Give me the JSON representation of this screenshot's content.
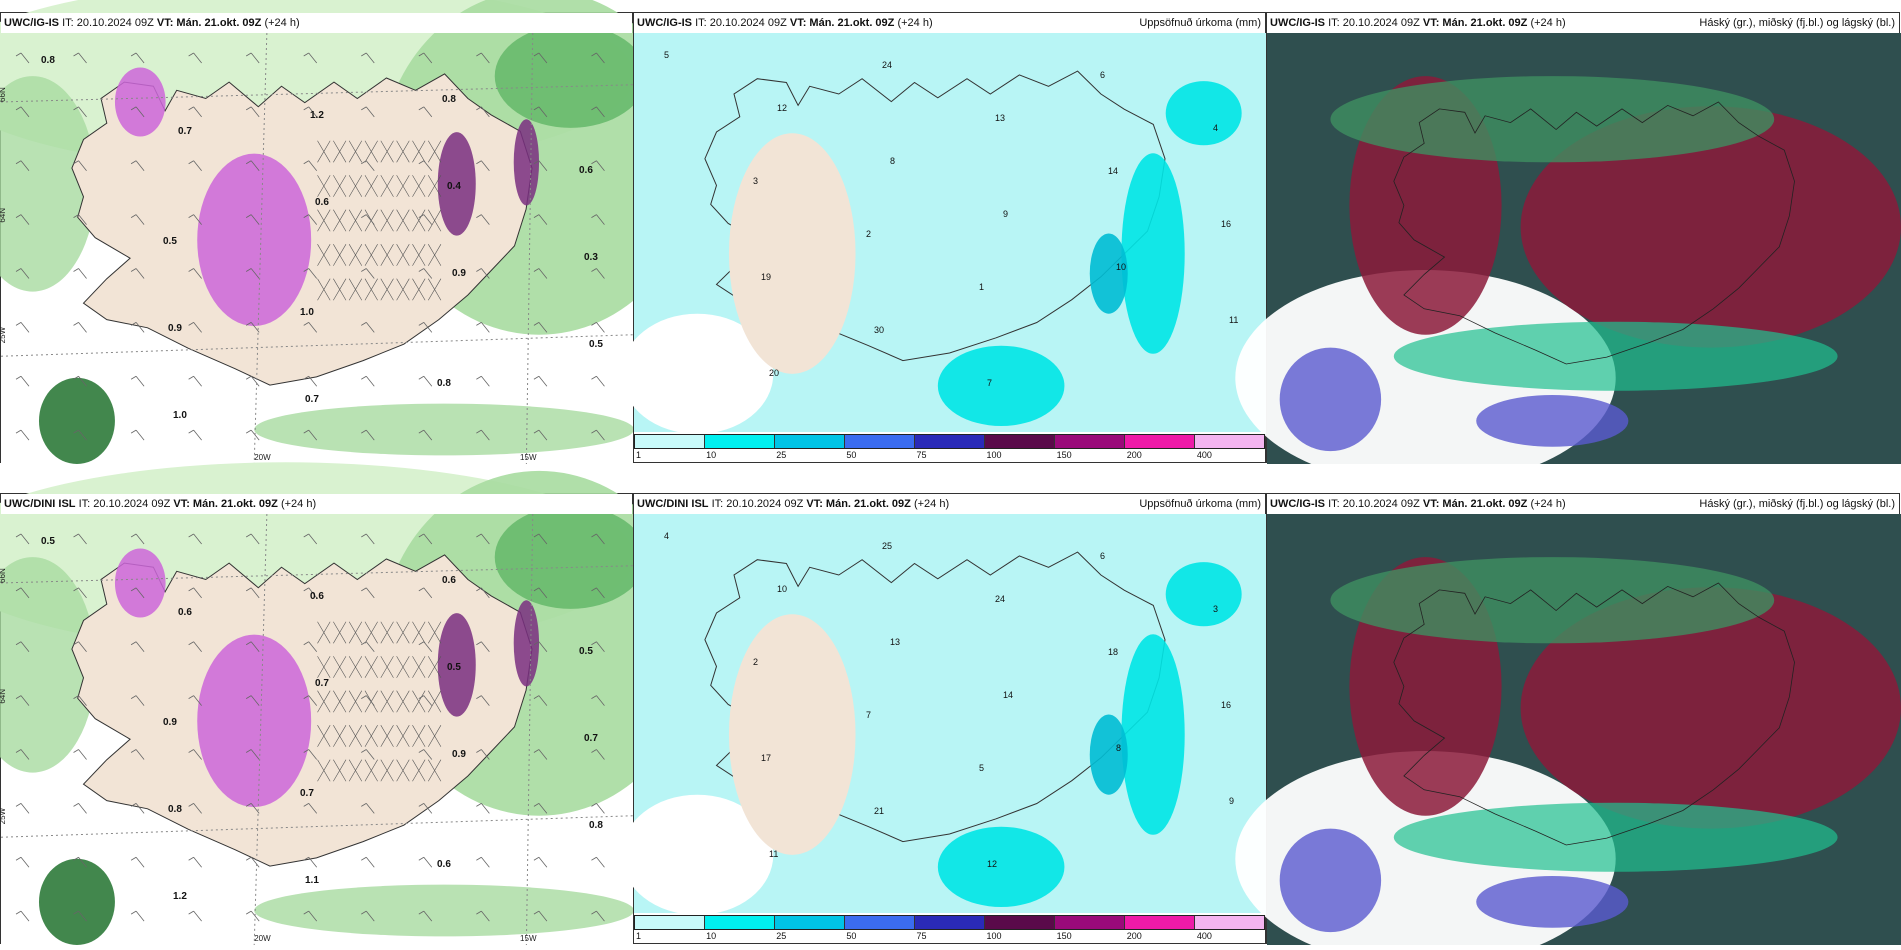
{
  "colors": {
    "sea_light": "#ffffff",
    "green_1": "#d9f2d0",
    "green_2": "#a7dba0",
    "green_3": "#5fb565",
    "green_4": "#2d7a3a",
    "land": "#f2e4d6",
    "magenta": "#cc66d9",
    "purple": "#7a2f80",
    "cyan_bg": "#b8f5f5",
    "cyan_mid": "#00e6e6",
    "cyan_dark": "#00bcd4",
    "cloud_dark": "#2f4f4f",
    "cloud_green": "#3f8f60",
    "cloud_teal": "#20c090",
    "cloud_maroon": "#8b1a3a",
    "cloud_blue": "#5a5ad0"
  },
  "panels": [
    {
      "row": 0,
      "col": 0,
      "kind": "cloud-phase",
      "title_model": "UWC/IG-IS",
      "title_it": "IT: 20.10.2024 09Z",
      "title_vt": "VT: Mán. 21.okt. 09Z",
      "title_lead": "(+24 h)",
      "right_label": "",
      "lon_labels": [
        "20W",
        "15W"
      ],
      "lat_labels": [
        "66N",
        "64N",
        "25W"
      ],
      "values": [
        "0.8",
        "0.7",
        "0.6",
        "0.9",
        "0.5",
        "1.0",
        "1.2",
        "0.4",
        "0.3",
        "0.9",
        "0.7",
        "0.8",
        "0.6",
        "0.5",
        "1.0",
        "0.8"
      ]
    },
    {
      "row": 0,
      "col": 1,
      "kind": "precip",
      "title_model": "UWC/IG-IS",
      "title_it": "IT: 20.10.2024 09Z",
      "title_vt": "VT: Mán. 21.okt. 09Z",
      "title_lead": "(+24 h)",
      "right_label": "Uppsöfnuð úrkoma (mm)",
      "values": [
        "5",
        "12",
        "8",
        "9",
        "10",
        "11",
        "20",
        "24",
        "13",
        "14",
        "16",
        "19",
        "30",
        "7",
        "6",
        "4",
        "3",
        "2",
        "1"
      ]
    },
    {
      "row": 0,
      "col": 2,
      "kind": "clouds",
      "title_model": "UWC/IG-IS",
      "title_it": "IT: 20.10.2024 09Z",
      "title_vt": "VT: Mán. 21.okt. 09Z",
      "title_lead": "(+24 h)",
      "right_label": "Háský (gr.), miðský (fj.bl.) og lágský (bl.)"
    },
    {
      "row": 1,
      "col": 0,
      "kind": "cloud-phase",
      "title_model": "UWC/DINI ISL",
      "title_it": "IT: 20.10.2024 09Z",
      "title_vt": "VT: Mán. 21.okt. 09Z",
      "title_lead": "(+24 h)",
      "right_label": "",
      "lon_labels": [
        "20W",
        "15W"
      ],
      "lat_labels": [
        "66N",
        "64N",
        "25W"
      ],
      "values": [
        "0.5",
        "0.6",
        "0.7",
        "0.9",
        "0.8",
        "1.2",
        "0.6",
        "0.5",
        "0.7",
        "0.8",
        "1.1",
        "0.6",
        "0.5",
        "0.9",
        "0.7",
        "0.6"
      ]
    },
    {
      "row": 1,
      "col": 1,
      "kind": "precip",
      "title_model": "UWC/DINI ISL",
      "title_it": "IT: 20.10.2024 09Z",
      "title_vt": "VT: Mán. 21.okt. 09Z",
      "title_lead": "(+24 h)",
      "right_label": "Uppsöfnuð úrkoma (mm)",
      "values": [
        "4",
        "10",
        "13",
        "14",
        "8",
        "9",
        "11",
        "25",
        "24",
        "18",
        "16",
        "17",
        "21",
        "12",
        "6",
        "3",
        "2",
        "7",
        "5"
      ]
    },
    {
      "row": 1,
      "col": 2,
      "kind": "clouds",
      "title_model": "UWC/IG-IS",
      "title_it": "IT: 20.10.2024 09Z",
      "title_vt": "VT: Mán. 21.okt. 09Z",
      "title_lead": "(+24 h)",
      "right_label": "Háský (gr.), miðský (fj.bl.) og lágský (bl.)"
    }
  ],
  "colorbar": {
    "ticks": [
      "1",
      "10",
      "25",
      "50",
      "75",
      "100",
      "150",
      "200",
      "400"
    ],
    "colors": [
      "#c8fafa",
      "#00f0f0",
      "#00c4e6",
      "#3b6cf0",
      "#2a2ab8",
      "#5a0a4a",
      "#9a0a7a",
      "#ee1aa8",
      "#f4b4f0"
    ]
  }
}
